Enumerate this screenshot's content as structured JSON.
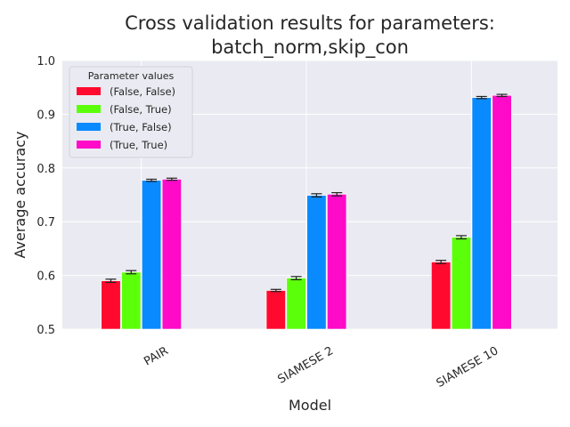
{
  "chart_data": {
    "type": "bar",
    "title_lines": [
      "Cross validation results for parameters:",
      "batch_norm,skip_con"
    ],
    "xlabel": "Model",
    "ylabel": "Average accuracy",
    "ylim": [
      0.5,
      1.0
    ],
    "yticks": [
      "0.5",
      "0.6",
      "0.7",
      "0.8",
      "0.9",
      "1.0"
    ],
    "ytick_values": [
      0.5,
      0.6,
      0.7,
      0.8,
      0.9,
      1.0
    ],
    "categories": [
      "PAIR",
      "SIAMESE 2",
      "SIAMESE 10"
    ],
    "legend_title": "Parameter values",
    "legend_position": "top-left",
    "grid": true,
    "series": [
      {
        "name": "(False, False)",
        "color": "#ff0a2e",
        "values": [
          0.59,
          0.572,
          0.625
        ],
        "errors": [
          0.003,
          0.002,
          0.003
        ]
      },
      {
        "name": "(False, True)",
        "color": "#5cff0a",
        "values": [
          0.606,
          0.595,
          0.671
        ],
        "errors": [
          0.003,
          0.003,
          0.003
        ]
      },
      {
        "name": "(True, False)",
        "color": "#0a8aff",
        "values": [
          0.777,
          0.749,
          0.931
        ],
        "errors": [
          0.002,
          0.003,
          0.002
        ]
      },
      {
        "name": "(True, True)",
        "color": "#ff0ac8",
        "values": [
          0.779,
          0.751,
          0.935
        ],
        "errors": [
          0.002,
          0.003,
          0.002
        ]
      }
    ]
  }
}
